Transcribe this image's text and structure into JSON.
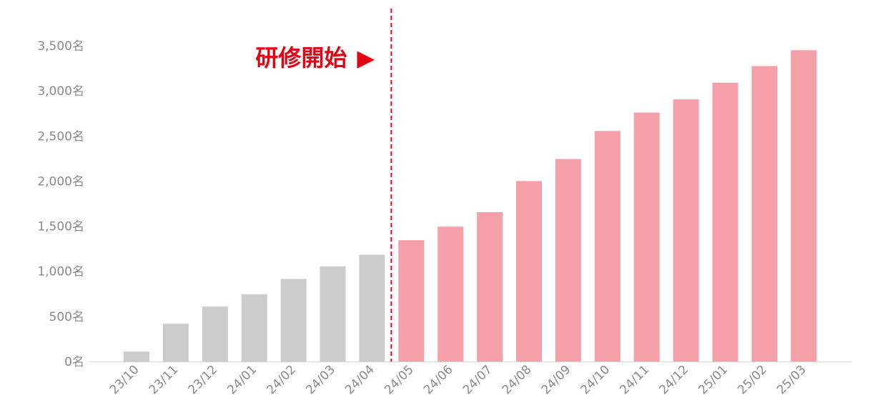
{
  "chart_data": {
    "type": "bar",
    "title": "",
    "xlabel": "",
    "ylabel": "",
    "categories": [
      "23/10",
      "23/11",
      "23/12",
      "24/01",
      "24/02",
      "24/03",
      "24/04",
      "24/05",
      "24/06",
      "24/07",
      "24/08",
      "24/09",
      "24/10",
      "24/11",
      "24/12",
      "25/01",
      "25/02",
      "25/03"
    ],
    "values": [
      110,
      420,
      610,
      745,
      915,
      1055,
      1185,
      1345,
      1495,
      1655,
      2000,
      2245,
      2555,
      2760,
      2905,
      3090,
      3275,
      3450
    ],
    "ylim": [
      0,
      3500
    ],
    "yticks": [
      0,
      500,
      1000,
      1500,
      2000,
      2500,
      3000,
      3500
    ],
    "ytick_labels": [
      "0名",
      "500名",
      "1,000名",
      "1,500名",
      "2,000名",
      "2,500名",
      "3,000名",
      "3,500名"
    ],
    "grid": false,
    "colors": {
      "before": "#cccccc",
      "after": "#f5a0a8",
      "marker_line": "#c8102e",
      "annotation": "#e60012",
      "axis_text": "#8a8a8a",
      "baseline": "#d9d9d9"
    },
    "annotation": {
      "text": "研修開始",
      "arrow": "▶",
      "marker_between": [
        "24/04",
        "24/05"
      ]
    }
  }
}
